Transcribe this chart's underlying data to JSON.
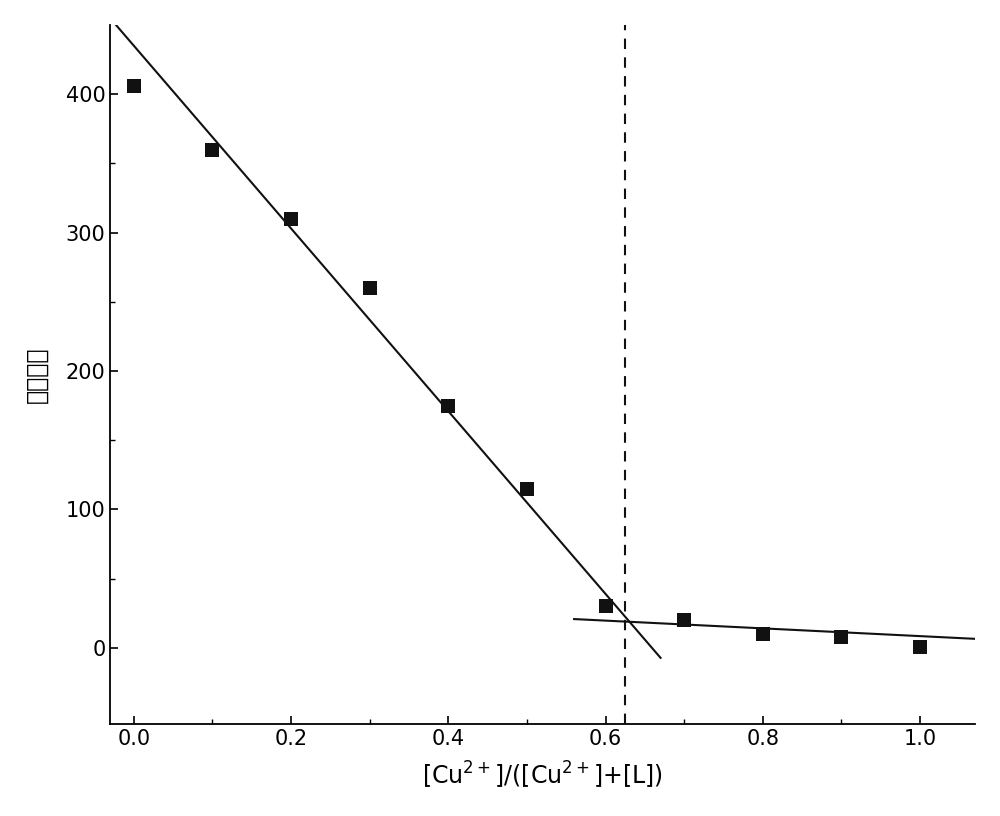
{
  "x_data": [
    0.0,
    0.1,
    0.2,
    0.3,
    0.4,
    0.5,
    0.6,
    0.7,
    0.8,
    0.9,
    1.0
  ],
  "y_data": [
    406,
    360,
    310,
    260,
    175,
    115,
    30,
    20,
    10,
    8,
    1
  ],
  "line1_x_start": -0.03,
  "line1_x_end": 0.67,
  "line1_slope": -660,
  "line1_intercept": 435,
  "line2_x_start": 0.56,
  "line2_x_end": 1.07,
  "line2_slope": -28,
  "line2_intercept": 36.5,
  "vline_x": 0.625,
  "xlabel": "[Cu$^{2+}$]/([Cu$^{2+}$]+[L])",
  "ylabel": "荧光强度",
  "xlim": [
    -0.03,
    1.07
  ],
  "ylim": [
    -55,
    450
  ],
  "xticks": [
    0.0,
    0.2,
    0.4,
    0.6,
    0.8,
    1.0
  ],
  "yticks": [
    0,
    100,
    200,
    300,
    400
  ],
  "minor_ytick_locs": [
    50,
    150,
    250,
    350
  ],
  "marker_color": "#111111",
  "line_color": "#111111",
  "background_color": "#ffffff",
  "label_fontsize": 17,
  "tick_fontsize": 15,
  "marker_size": 10
}
